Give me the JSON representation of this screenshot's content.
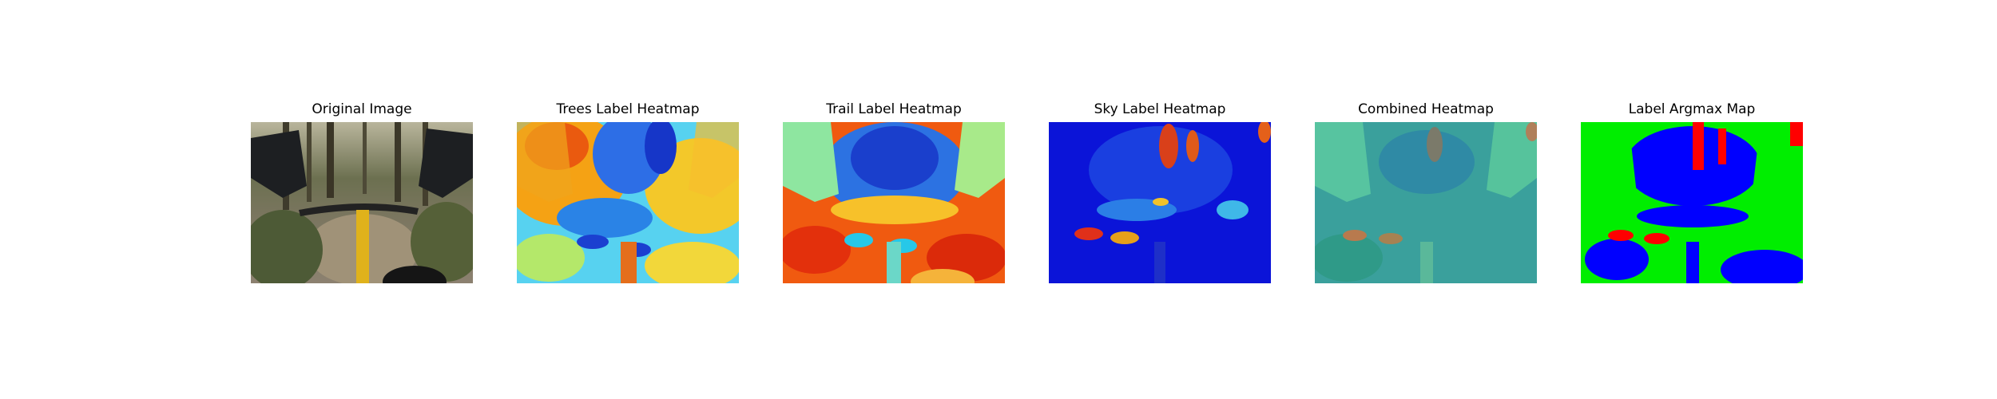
{
  "figure": {
    "panels": [
      {
        "id": "original",
        "title": "Original Image"
      },
      {
        "id": "trees",
        "title": "Trees Label Heatmap"
      },
      {
        "id": "trail",
        "title": "Trail Label Heatmap"
      },
      {
        "id": "sky",
        "title": "Sky Label Heatmap"
      },
      {
        "id": "combined",
        "title": "Combined Heatmap"
      },
      {
        "id": "argmax",
        "title": "Label Argmax Map"
      }
    ]
  }
}
